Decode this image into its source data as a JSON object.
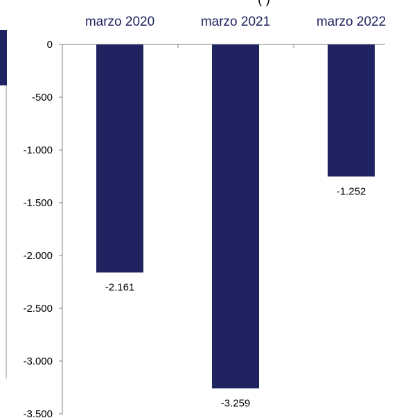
{
  "chart_data": {
    "type": "bar",
    "title_fragment": "(                )",
    "categories": [
      "marzo 2020",
      "marzo 2021",
      "marzo 2022"
    ],
    "values": [
      -2161,
      -3259,
      -1252
    ],
    "value_labels": [
      "-2.161",
      "-3.259",
      "-1.252"
    ],
    "ylim": [
      -3500,
      0
    ],
    "yticks": [
      0,
      -500,
      -1000,
      -1500,
      -2000,
      -2500,
      -3000,
      -3500
    ],
    "ytick_labels": [
      "0",
      "-500",
      "-1.000",
      "-1.500",
      "-2.000",
      "-2.500",
      "-3.000",
      "-3.500"
    ],
    "xlabel": "",
    "ylabel": "",
    "grid": false,
    "legend": "none",
    "colors": {
      "bar": "#1f2460",
      "category_label": "#1f2460",
      "axis": "#7f7f7f",
      "edge_block": "#1f2460",
      "edge_border": "#8c8c8c"
    }
  }
}
